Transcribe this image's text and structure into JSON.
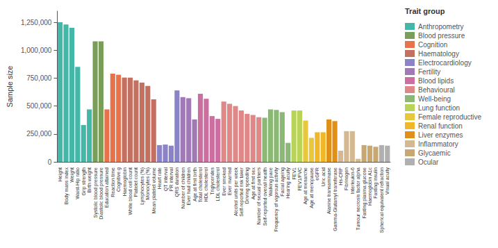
{
  "chart_data": {
    "type": "bar",
    "ylabel": "Sample size",
    "legend_title": "Trait group",
    "legend": "right",
    "stacked": true,
    "grid": false,
    "ylim": [
      0,
      1350000
    ],
    "yticks": [
      0,
      {
        "value": 250000,
        "label": "250,000"
      },
      {
        "value": 500000,
        "label": "500,000"
      },
      {
        "value": 750000,
        "label": "750,000"
      },
      {
        "value": 1000000,
        "label": "1,000,000"
      },
      {
        "value": 1250000,
        "label": "1,250,000"
      }
    ],
    "categories": [
      "Height",
      "Body mass index",
      "Weight",
      "Waist-Hip ratio",
      "Grip strength",
      "Birth weight",
      "Systolic blood pressure",
      "Diastolic blood pressure",
      "Education attained",
      "Reaction time",
      "Cognitive g",
      "Haemoglobin",
      "White blood cell count",
      "Platelet count",
      "Lymphocytes (%)",
      "Monocytes (%)",
      "Mean platelet volume",
      "Heart rate",
      "QT interval",
      "PR interval",
      "QRS duration",
      "Number of children",
      "Ever had children",
      "Age at first birth",
      "Total cholesterol",
      "HDL cholesterol",
      "Triglycerides",
      "LDL cholesterol",
      "Ever smoked",
      "Ever married",
      "Alcohol units per week",
      "Self-reported risk taker",
      "Driving speeding",
      "Age at first sex",
      "Number of sexual partners",
      "Self-reported overall health",
      "Walking pace",
      "Frequency of vigorous activity",
      "Facial ageing",
      "Hearing acuity",
      "FEV1",
      "FEV1/FVC",
      "Age at menarche",
      "Age at menopause",
      "eGFR",
      "Uric acid",
      "Alanine transaminase",
      "Gamma-Glutamyl transferase",
      "Hs-CRP",
      "Fibrinogen",
      "Interleukin-6",
      "Tumour necrosis factor alpha",
      "Fasting plasma glucose",
      "Haemoglobin A1c",
      "Fasting insulin",
      "Spherical equivalent refraction",
      "Visual acuity"
    ],
    "series": [
      {
        "name": "Anthropometry",
        "color": "#45b7a8",
        "values": [
          1250000,
          1230000,
          1200000,
          850000,
          330000,
          470000,
          null,
          null,
          null,
          null,
          null,
          null,
          null,
          null,
          null,
          null,
          null,
          null,
          null,
          null,
          null,
          null,
          null,
          null,
          null,
          null,
          null,
          null,
          null,
          null,
          null,
          null,
          null,
          null,
          null,
          null,
          null,
          null,
          null,
          null,
          null,
          null,
          null,
          null,
          null,
          null,
          null,
          null,
          null,
          null,
          null,
          null,
          null,
          null,
          null,
          null,
          null
        ]
      },
      {
        "name": "Blood pressure",
        "color": "#7a9e5a",
        "values": [
          null,
          null,
          null,
          null,
          null,
          null,
          1080000,
          1080000,
          null,
          null,
          null,
          null,
          null,
          null,
          null,
          null,
          null,
          null,
          null,
          null,
          null,
          null,
          null,
          null,
          null,
          null,
          null,
          null,
          null,
          null,
          null,
          null,
          null,
          null,
          null,
          null,
          null,
          null,
          null,
          null,
          null,
          null,
          null,
          null,
          null,
          null,
          null,
          null,
          null,
          null,
          null,
          null,
          null,
          null,
          null,
          null,
          null
        ]
      },
      {
        "name": "Cognition",
        "color": "#e8724a",
        "values": [
          null,
          null,
          null,
          null,
          null,
          null,
          null,
          null,
          470000,
          790000,
          780000,
          null,
          null,
          null,
          null,
          null,
          null,
          null,
          null,
          null,
          null,
          null,
          null,
          null,
          null,
          null,
          null,
          null,
          null,
          null,
          null,
          null,
          null,
          null,
          null,
          null,
          null,
          null,
          null,
          null,
          null,
          null,
          null,
          null,
          null,
          null,
          null,
          null,
          null,
          null,
          null,
          null,
          null,
          null,
          null,
          null,
          null
        ]
      },
      {
        "name": "Haematology",
        "color": "#c47060",
        "values": [
          null,
          null,
          null,
          null,
          null,
          null,
          null,
          null,
          null,
          null,
          null,
          755000,
          755000,
          730000,
          710000,
          680000,
          560000,
          null,
          null,
          null,
          null,
          null,
          null,
          null,
          null,
          null,
          null,
          null,
          null,
          null,
          null,
          null,
          null,
          null,
          null,
          null,
          null,
          null,
          null,
          null,
          null,
          null,
          null,
          null,
          null,
          null,
          null,
          null,
          null,
          null,
          null,
          null,
          null,
          null,
          null,
          null,
          null
        ]
      },
      {
        "name": "Electrocardiology",
        "color": "#8b83c8",
        "values": [
          null,
          null,
          null,
          null,
          null,
          null,
          null,
          null,
          null,
          null,
          null,
          null,
          null,
          null,
          null,
          null,
          null,
          150000,
          155000,
          145000,
          640000,
          null,
          null,
          null,
          null,
          null,
          null,
          null,
          null,
          null,
          null,
          null,
          null,
          null,
          null,
          null,
          null,
          null,
          null,
          null,
          null,
          null,
          null,
          null,
          null,
          null,
          null,
          null,
          null,
          null,
          null,
          null,
          null,
          null,
          null,
          null,
          null
        ]
      },
      {
        "name": "Fertility",
        "color": "#a07ab5",
        "values": [
          null,
          null,
          null,
          null,
          null,
          null,
          null,
          null,
          null,
          null,
          null,
          null,
          null,
          null,
          null,
          null,
          null,
          null,
          null,
          null,
          null,
          580000,
          570000,
          380000,
          null,
          null,
          null,
          null,
          null,
          null,
          null,
          null,
          null,
          null,
          null,
          null,
          null,
          null,
          null,
          null,
          null,
          null,
          null,
          null,
          null,
          null,
          null,
          null,
          null,
          null,
          null,
          null,
          null,
          null,
          null,
          null,
          null
        ]
      },
      {
        "name": "Blood lipids",
        "color": "#cc6fa0",
        "values": [
          null,
          null,
          null,
          null,
          null,
          null,
          null,
          null,
          null,
          null,
          null,
          null,
          null,
          null,
          null,
          null,
          null,
          null,
          null,
          null,
          null,
          null,
          null,
          null,
          610000,
          565000,
          410000,
          385000,
          null,
          null,
          null,
          null,
          null,
          null,
          null,
          null,
          null,
          null,
          null,
          null,
          null,
          null,
          null,
          null,
          null,
          null,
          null,
          null,
          null,
          null,
          null,
          null,
          null,
          null,
          null,
          null,
          null
        ]
      },
      {
        "name": "Behavioural",
        "color": "#e08888",
        "values": [
          null,
          null,
          null,
          null,
          null,
          null,
          null,
          null,
          null,
          null,
          null,
          null,
          null,
          null,
          null,
          null,
          null,
          null,
          null,
          null,
          null,
          null,
          null,
          null,
          null,
          null,
          null,
          null,
          540000,
          520000,
          500000,
          460000,
          430000,
          420000,
          400000,
          null,
          null,
          null,
          null,
          null,
          null,
          null,
          null,
          null,
          null,
          null,
          null,
          null,
          null,
          null,
          null,
          null,
          null,
          null,
          null,
          null,
          null
        ]
      },
      {
        "name": "Well-being",
        "color": "#8bb875",
        "values": [
          null,
          null,
          null,
          null,
          null,
          null,
          null,
          null,
          null,
          null,
          null,
          null,
          null,
          null,
          null,
          null,
          null,
          null,
          null,
          null,
          null,
          null,
          null,
          null,
          null,
          null,
          null,
          null,
          null,
          null,
          null,
          null,
          null,
          null,
          null,
          395000,
          470000,
          465000,
          445000,
          170000,
          null,
          null,
          null,
          null,
          null,
          null,
          null,
          null,
          null,
          null,
          null,
          null,
          null,
          null,
          null,
          null,
          null
        ]
      },
      {
        "name": "Lung function",
        "color": "#b8d458",
        "values": [
          null,
          null,
          null,
          null,
          null,
          null,
          null,
          null,
          null,
          null,
          null,
          null,
          null,
          null,
          null,
          null,
          null,
          null,
          null,
          null,
          null,
          null,
          null,
          null,
          null,
          null,
          null,
          null,
          null,
          null,
          null,
          null,
          null,
          null,
          null,
          null,
          null,
          null,
          null,
          null,
          460000,
          460000,
          null,
          null,
          null,
          null,
          null,
          null,
          null,
          null,
          null,
          null,
          null,
          null,
          null,
          null,
          null
        ]
      },
      {
        "name": "Female reproductive",
        "color": "#e8c83a",
        "values": [
          null,
          null,
          null,
          null,
          null,
          null,
          null,
          null,
          null,
          null,
          null,
          null,
          null,
          null,
          null,
          null,
          null,
          null,
          null,
          null,
          null,
          null,
          null,
          null,
          null,
          null,
          null,
          null,
          null,
          null,
          null,
          null,
          null,
          null,
          null,
          null,
          null,
          null,
          null,
          null,
          null,
          null,
          370000,
          215000,
          null,
          null,
          null,
          null,
          null,
          null,
          null,
          null,
          null,
          null,
          null,
          null,
          null
        ]
      },
      {
        "name": "Renal function",
        "color": "#f0b828",
        "values": [
          null,
          null,
          null,
          null,
          null,
          null,
          null,
          null,
          null,
          null,
          null,
          null,
          null,
          null,
          null,
          null,
          null,
          null,
          null,
          null,
          null,
          null,
          null,
          null,
          null,
          null,
          null,
          null,
          null,
          null,
          null,
          null,
          null,
          null,
          null,
          null,
          null,
          null,
          null,
          null,
          null,
          null,
          null,
          null,
          265000,
          265000,
          null,
          null,
          null,
          null,
          null,
          null,
          null,
          null,
          null,
          null,
          null
        ]
      },
      {
        "name": "Liver enzymes",
        "color": "#e09018",
        "values": [
          null,
          null,
          null,
          null,
          null,
          null,
          null,
          null,
          null,
          null,
          null,
          null,
          null,
          null,
          null,
          null,
          null,
          null,
          null,
          null,
          null,
          null,
          null,
          null,
          null,
          null,
          null,
          null,
          null,
          null,
          null,
          null,
          null,
          null,
          null,
          null,
          null,
          null,
          null,
          null,
          null,
          null,
          null,
          null,
          null,
          null,
          380000,
          365000,
          null,
          null,
          null,
          null,
          null,
          null,
          null,
          null,
          null
        ]
      },
      {
        "name": "Inflammatory",
        "color": "#d4b890",
        "values": [
          null,
          null,
          null,
          null,
          null,
          null,
          null,
          null,
          null,
          null,
          null,
          null,
          null,
          null,
          null,
          null,
          null,
          null,
          null,
          null,
          null,
          null,
          null,
          null,
          null,
          null,
          null,
          null,
          null,
          null,
          null,
          null,
          null,
          null,
          null,
          null,
          null,
          null,
          null,
          null,
          null,
          null,
          null,
          null,
          null,
          null,
          null,
          null,
          100000,
          275000,
          275000,
          27000,
          null,
          null,
          null,
          null,
          null
        ]
      },
      {
        "name": "Glycaemic",
        "color": "#c8a870",
        "values": [
          null,
          null,
          null,
          null,
          null,
          null,
          null,
          null,
          null,
          null,
          null,
          null,
          null,
          null,
          null,
          null,
          null,
          null,
          null,
          null,
          null,
          null,
          null,
          null,
          null,
          null,
          null,
          null,
          null,
          null,
          null,
          null,
          null,
          null,
          null,
          null,
          null,
          null,
          null,
          null,
          null,
          null,
          null,
          null,
          null,
          null,
          null,
          null,
          null,
          null,
          null,
          null,
          150000,
          145000,
          135000,
          null,
          null
        ]
      },
      {
        "name": "Ocular",
        "color": "#b0b0b0",
        "values": [
          null,
          null,
          null,
          null,
          null,
          null,
          null,
          null,
          null,
          null,
          null,
          null,
          null,
          null,
          null,
          null,
          null,
          null,
          null,
          null,
          null,
          null,
          null,
          null,
          null,
          null,
          null,
          null,
          null,
          null,
          null,
          null,
          null,
          null,
          null,
          null,
          null,
          null,
          null,
          null,
          null,
          null,
          null,
          null,
          null,
          null,
          null,
          null,
          null,
          null,
          null,
          null,
          null,
          null,
          null,
          150000,
          145000
        ]
      }
    ]
  }
}
